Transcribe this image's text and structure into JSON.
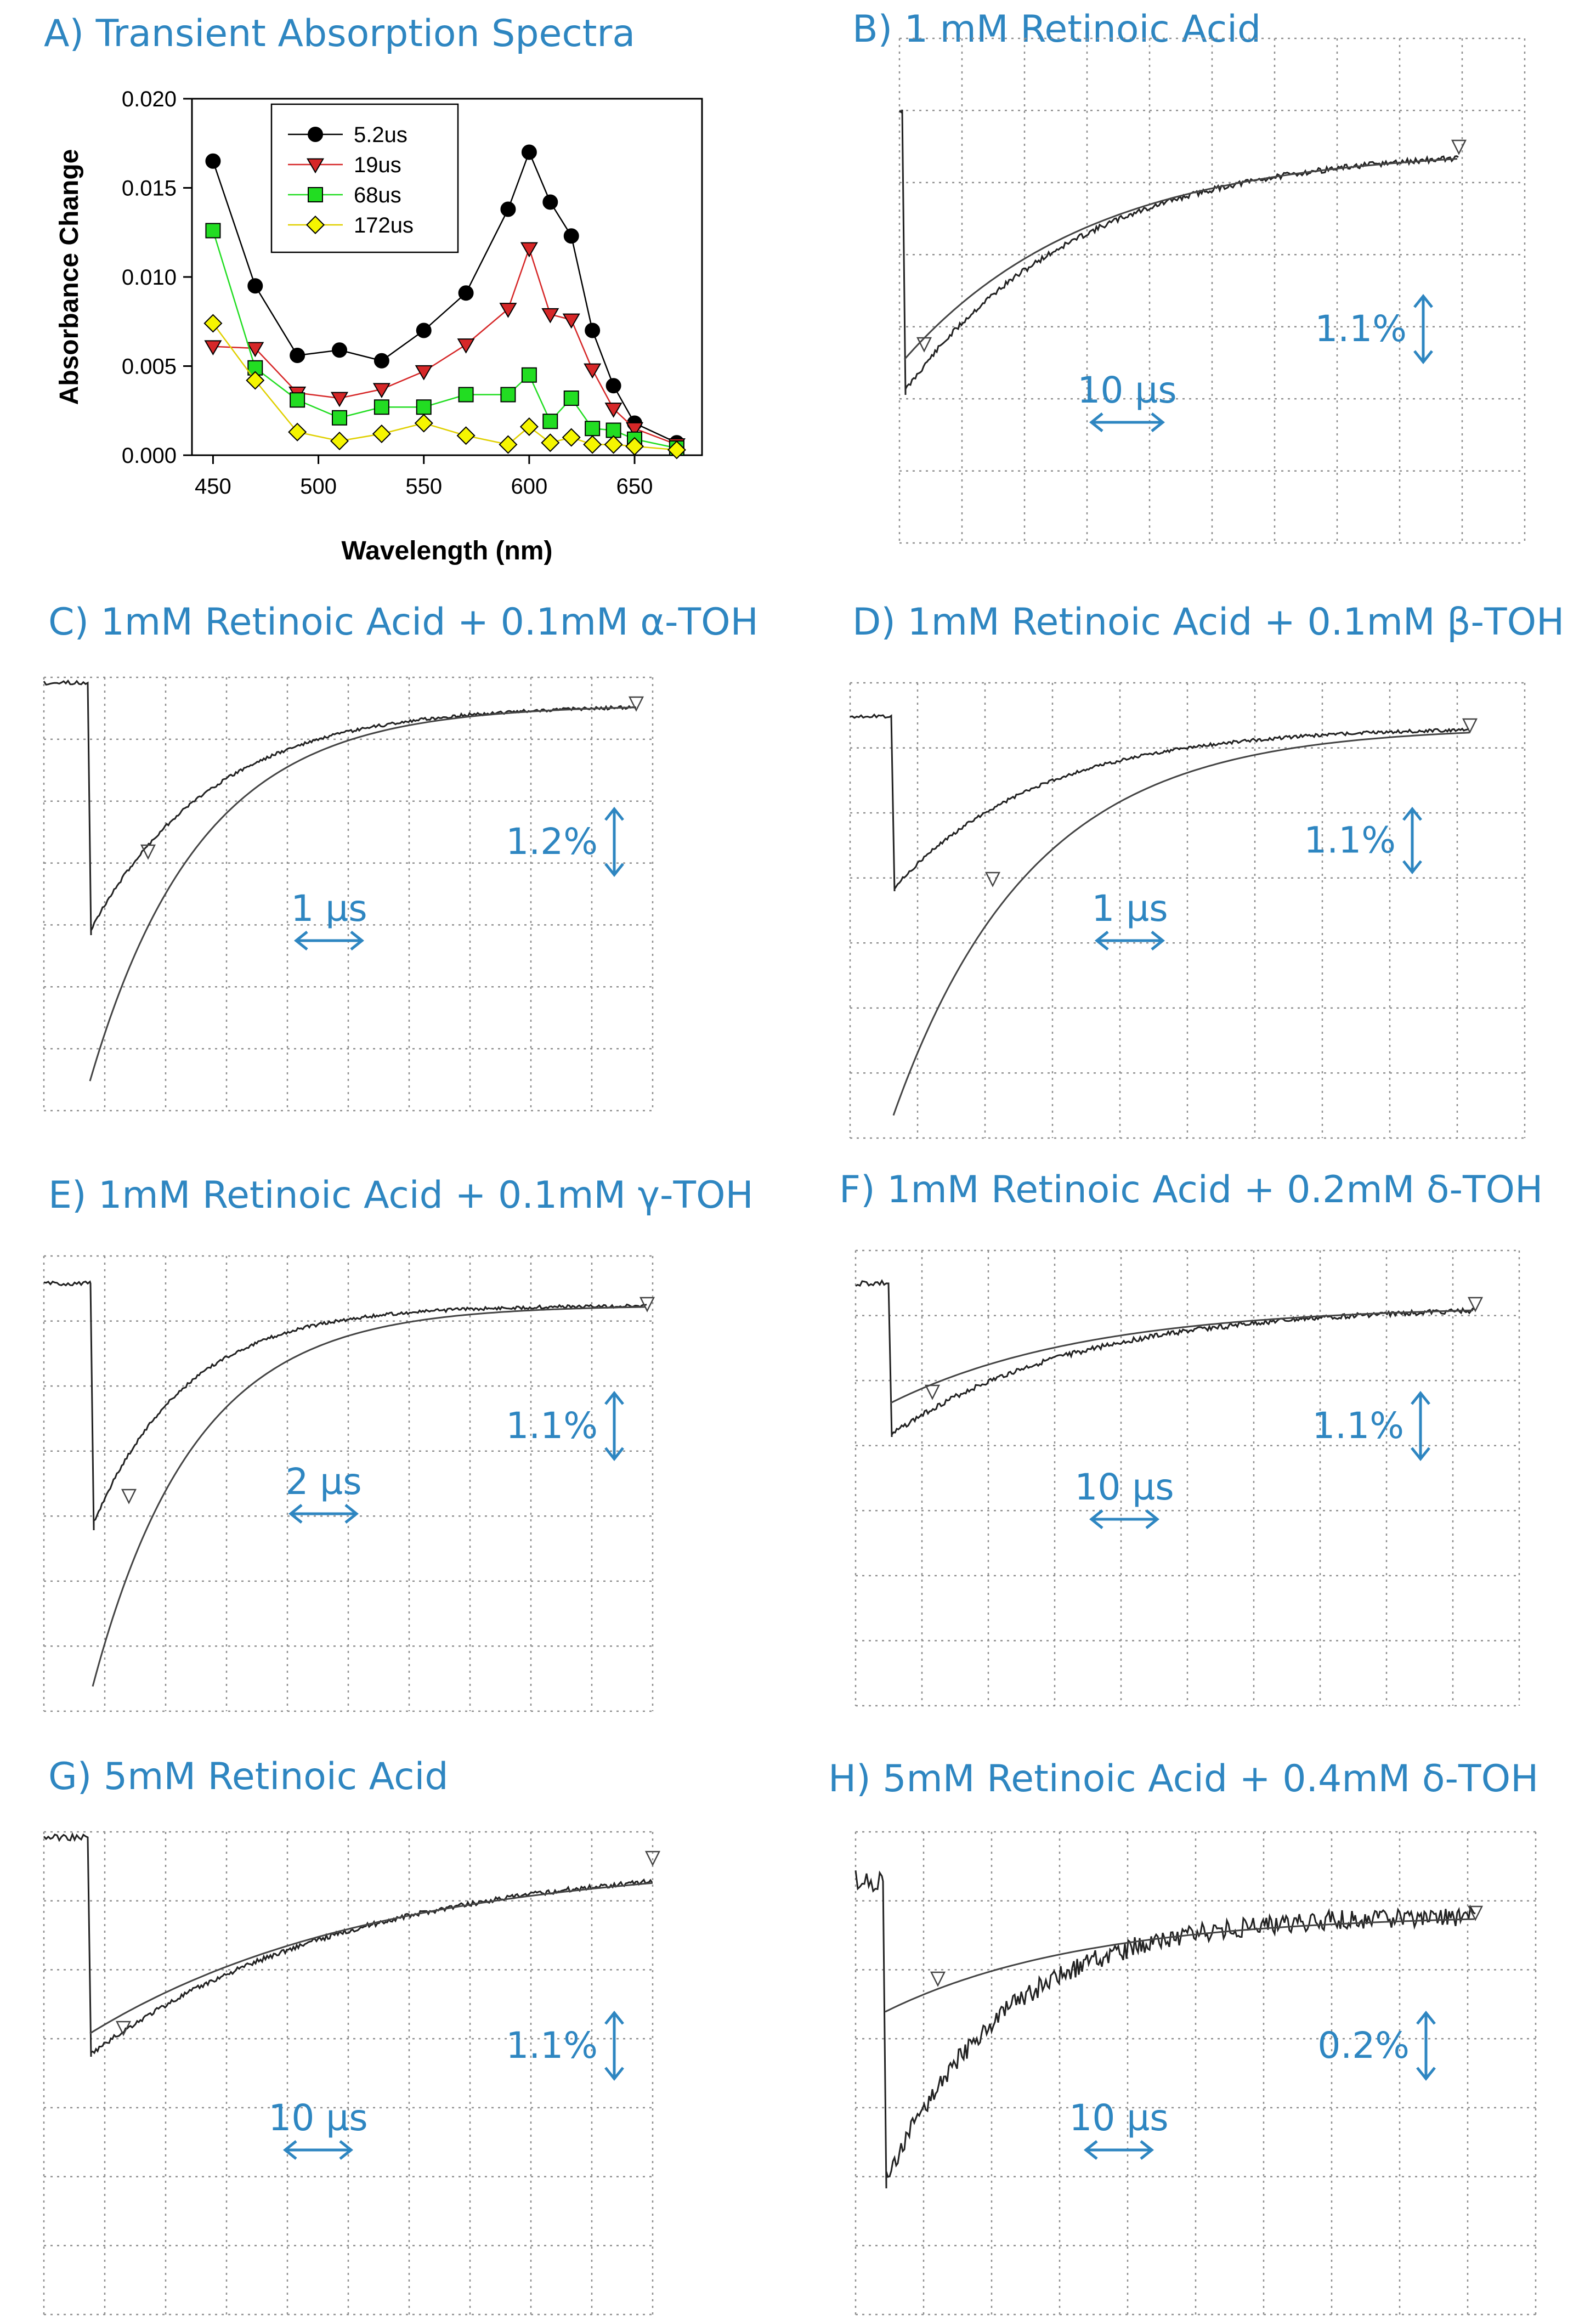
{
  "chart_data": [
    {
      "panel": "A",
      "type": "line",
      "title": "A) Transient Absorption Spectra",
      "xlabel": "Wavelength (nm)",
      "ylabel": "Absorbance Change",
      "xlim": [
        440,
        682
      ],
      "ylim": [
        0.0,
        0.02
      ],
      "x_ticks": [
        450,
        500,
        550,
        600,
        650
      ],
      "y_ticks": [
        "0.000",
        "0.005",
        "0.010",
        "0.015",
        "0.020"
      ],
      "grid": false,
      "legend": "top-left",
      "x": [
        450,
        470,
        490,
        510,
        530,
        550,
        570,
        590,
        600,
        610,
        620,
        630,
        640,
        650,
        670
      ],
      "series": [
        {
          "name": "5.2us",
          "color": "#000000",
          "marker": "circle",
          "values": [
            0.0165,
            0.0095,
            0.0056,
            0.0059,
            0.0053,
            0.007,
            0.0091,
            0.0138,
            0.017,
            0.0142,
            0.0123,
            0.007,
            0.0039,
            0.0018,
            0.0007
          ]
        },
        {
          "name": "19us",
          "color": "#d62728",
          "marker": "triangle-down",
          "values": [
            0.0061,
            0.006,
            0.0035,
            0.0032,
            0.0037,
            0.0047,
            0.0062,
            0.0082,
            0.0116,
            0.0079,
            0.0076,
            0.0048,
            0.0026,
            0.0015,
            0.0006
          ]
        },
        {
          "name": "68us",
          "color": "#22dd22",
          "marker": "square",
          "values": [
            0.0126,
            0.0049,
            0.0031,
            0.0021,
            0.0027,
            0.0027,
            0.0034,
            0.0034,
            0.0045,
            0.0019,
            0.0032,
            0.0015,
            0.0014,
            0.0009,
            0.0004
          ]
        },
        {
          "name": "172us",
          "color": "#f5f500",
          "marker": "diamond",
          "values": [
            0.0074,
            0.0042,
            0.0013,
            0.0008,
            0.0012,
            0.0018,
            0.0011,
            0.0006,
            0.0016,
            0.0007,
            0.001,
            0.0006,
            0.0006,
            0.0005,
            0.0003
          ]
        }
      ]
    },
    {
      "panel": "B",
      "type": "line",
      "title": "B) 1 mM Retinoic Acid",
      "scale_y": "1.1%",
      "scale_x": "10 µs"
    },
    {
      "panel": "C",
      "type": "line",
      "title": "C) 1mM Retinoic Acid + 0.1mM α-TOH",
      "scale_y": "1.2%",
      "scale_x": "1 µs"
    },
    {
      "panel": "D",
      "type": "line",
      "title": "D) 1mM Retinoic Acid + 0.1mM β-TOH",
      "scale_y": "1.1%",
      "scale_x": "1 µs"
    },
    {
      "panel": "E",
      "type": "line",
      "title": "E) 1mM Retinoic Acid + 0.1mM γ-TOH",
      "scale_y": "1.1%",
      "scale_x": "2 µs"
    },
    {
      "panel": "F",
      "type": "line",
      "title": "F) 1mM Retinoic Acid + 0.2mM δ-TOH",
      "scale_y": "1.1%",
      "scale_x": "10 µs"
    },
    {
      "panel": "G",
      "type": "line",
      "title": "G) 5mM Retinoic Acid",
      "scale_y": "1.1%",
      "scale_x": "10 µs"
    },
    {
      "panel": "H",
      "type": "line",
      "title": "H) 5mM Retinoic Acid + 0.4mM δ-TOH",
      "scale_y": "0.2%",
      "scale_x": "10 µs"
    }
  ],
  "colors": {
    "annotation": "#2e86c1",
    "trace": "#222222",
    "grid": "#9a9a9a"
  }
}
